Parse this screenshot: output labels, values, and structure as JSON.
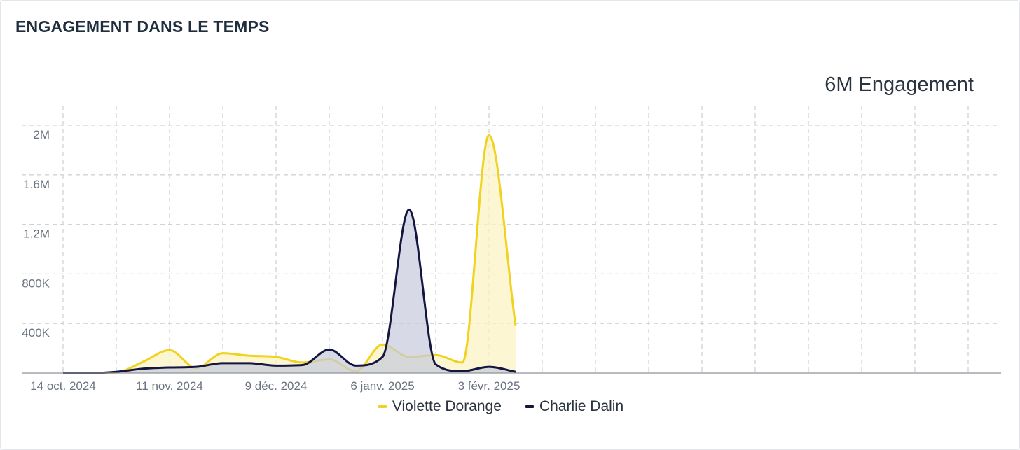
{
  "header": {
    "title": "ENGAGEMENT DANS LE TEMPS"
  },
  "summary": {
    "total_label": "6M Engagement"
  },
  "chart_data": {
    "type": "area",
    "title": "ENGAGEMENT DANS LE TEMPS",
    "xlabel": "",
    "ylabel": "",
    "x_ticks": [
      "2024-10-14",
      "2024-11-11",
      "2024-12-09",
      "2025-01-06",
      "2025-02-03"
    ],
    "x_tick_labels": [
      "14 oct. 2024",
      "11 nov. 2024",
      "9 déc. 2024",
      "6 janv. 2025",
      "3 févr. 2025"
    ],
    "xlim": [
      "2024-10-14",
      "2025-02-17"
    ],
    "ylim": [
      0,
      2000000
    ],
    "y_ticks": [
      400000,
      800000,
      1200000,
      1600000,
      2000000
    ],
    "y_tick_labels": [
      "400K",
      "800K",
      "1.2M",
      "1.6M",
      "2M"
    ],
    "grid": true,
    "legend_position": "bottom-center",
    "series": [
      {
        "name": "Violette Dorange",
        "color": "#f0d21f",
        "fill": "#fbf3c4",
        "points": [
          [
            "2024-10-14",
            0
          ],
          [
            "2024-10-21",
            0
          ],
          [
            "2024-10-28",
            5000
          ],
          [
            "2024-11-04",
            90000
          ],
          [
            "2024-11-11",
            185000
          ],
          [
            "2024-11-18",
            40000
          ],
          [
            "2024-11-25",
            160000
          ],
          [
            "2024-12-02",
            140000
          ],
          [
            "2024-12-09",
            130000
          ],
          [
            "2024-12-16",
            85000
          ],
          [
            "2024-12-23",
            110000
          ],
          [
            "2024-12-30",
            15000
          ],
          [
            "2025-01-06",
            230000
          ],
          [
            "2025-01-13",
            130000
          ],
          [
            "2025-01-20",
            145000
          ],
          [
            "2025-01-27",
            85000
          ],
          [
            "2025-02-03",
            1920000
          ],
          [
            "2025-02-10",
            380000
          ]
        ]
      },
      {
        "name": "Charlie Dalin",
        "color": "#14163f",
        "fill": "#c6cadb",
        "points": [
          [
            "2024-10-14",
            0
          ],
          [
            "2024-10-21",
            0
          ],
          [
            "2024-10-28",
            10000
          ],
          [
            "2024-11-04",
            35000
          ],
          [
            "2024-11-11",
            45000
          ],
          [
            "2024-11-18",
            50000
          ],
          [
            "2024-11-25",
            80000
          ],
          [
            "2024-12-02",
            80000
          ],
          [
            "2024-12-09",
            60000
          ],
          [
            "2024-12-16",
            65000
          ],
          [
            "2024-12-23",
            190000
          ],
          [
            "2024-12-30",
            60000
          ],
          [
            "2025-01-06",
            130000
          ],
          [
            "2025-01-13",
            1320000
          ],
          [
            "2025-01-20",
            70000
          ],
          [
            "2025-01-27",
            15000
          ],
          [
            "2025-02-03",
            50000
          ],
          [
            "2025-02-10",
            10000
          ]
        ]
      }
    ]
  }
}
